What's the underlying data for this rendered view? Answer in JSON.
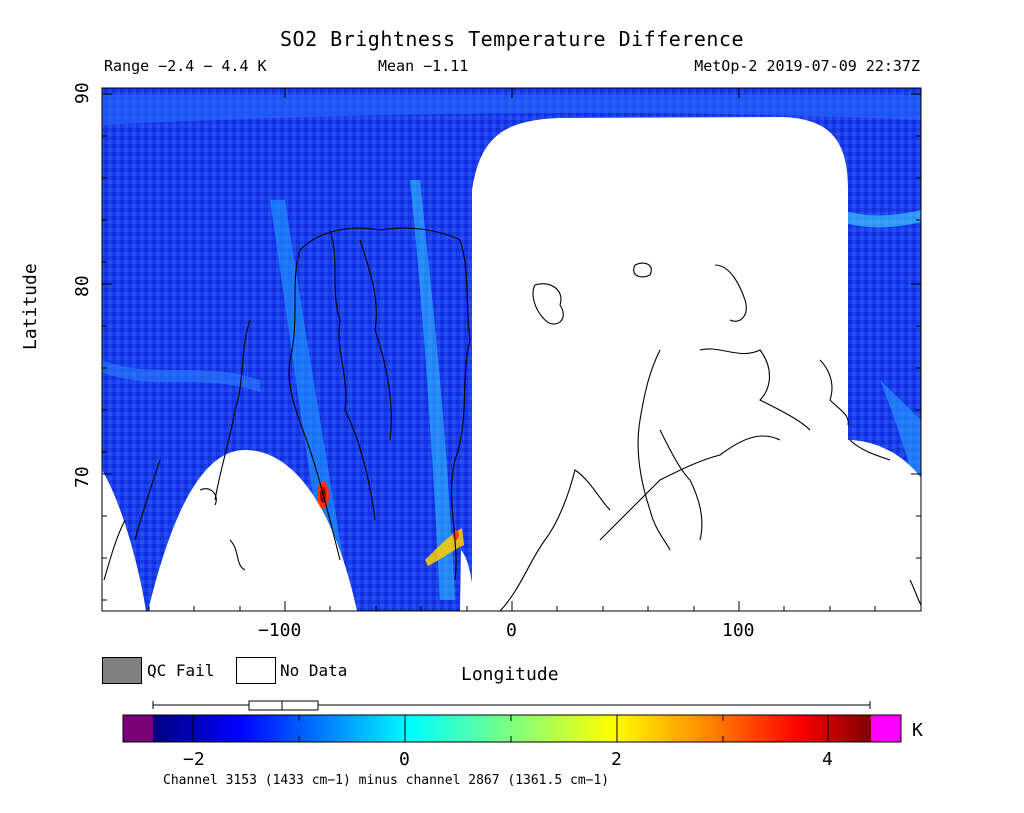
{
  "header": {
    "title": "SO2 Brightness Temperature Difference",
    "range": "Range −2.4 − 4.4 K",
    "mean": "Mean −1.11",
    "satellite_time": "MetOp-2 2019-07-09 22:37Z"
  },
  "axes": {
    "ylabel": "Latitude",
    "xlabel": "Longitude",
    "yticks": [
      "90",
      "80",
      "70"
    ],
    "xticks": [
      "−100",
      "0",
      "100"
    ]
  },
  "legend": {
    "qc_fail": "QC Fail",
    "no_data": "No Data",
    "qc_fail_color": "#808080",
    "no_data_color": "#ffffff"
  },
  "colorbar": {
    "ticks": [
      "−2",
      "0",
      "2",
      "4"
    ],
    "unit": "K",
    "caption": "Channel 3153 (1433 cm−1) minus channel 2867 (1361.5 cm−1)",
    "underflow_color": "#7a0078",
    "overflow_color": "#ff00ff",
    "colors": [
      "#00007f",
      "#0000ff",
      "#007fff",
      "#00ffff",
      "#7fff7f",
      "#ffff00",
      "#ff7f00",
      "#ff0000",
      "#7f0000"
    ]
  },
  "chart_data": {
    "type": "heatmap",
    "title": "SO2 Brightness Temperature Difference",
    "xlabel": "Longitude",
    "ylabel": "Latitude",
    "xlim": [
      -180,
      180
    ],
    "ylim": [
      63,
      90
    ],
    "xticks": [
      -100,
      0,
      100
    ],
    "yticks": [
      70,
      80,
      90
    ],
    "color_range": [
      -2.4,
      4.4
    ],
    "mean": -1.11,
    "colorbar_ticks": [
      -2,
      0,
      2,
      4
    ],
    "units": "K"
  }
}
